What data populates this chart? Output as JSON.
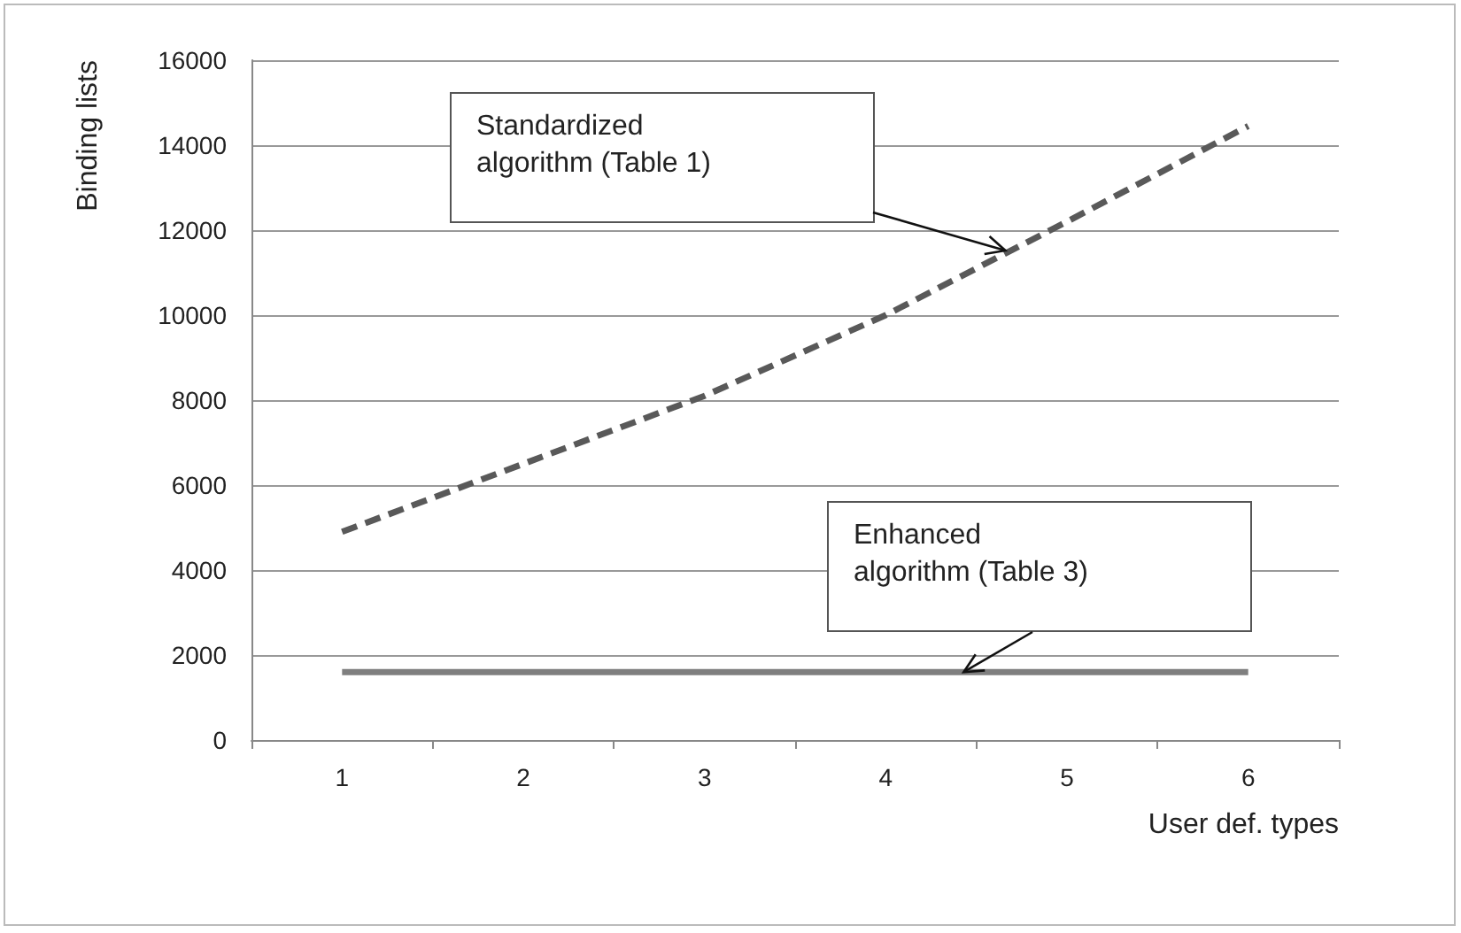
{
  "chart_data": {
    "type": "line",
    "xlabel": "User def. types",
    "ylabel": "Binding lists",
    "categories": [
      "1",
      "2",
      "3",
      "4",
      "5",
      "6"
    ],
    "series": [
      {
        "color": "#595959",
        "line_style": "dashed",
        "values": [
          4900,
          6500,
          8100,
          10000,
          12200,
          14450
        ]
      },
      {
        "color": "#7f7f7f",
        "line_style": "solid",
        "values": [
          1600,
          1600,
          1600,
          1600,
          1600,
          1600
        ]
      }
    ],
    "ylim": [
      0,
      16000
    ],
    "yticks": [
      0,
      2000,
      4000,
      6000,
      8000,
      10000,
      12000,
      14000,
      16000
    ],
    "grid": "y",
    "marker": "none",
    "annotations": [
      "Standardized\nalgorithm (Table 1)",
      "Enhanced\nalgorithm (Table 3)"
    ]
  }
}
